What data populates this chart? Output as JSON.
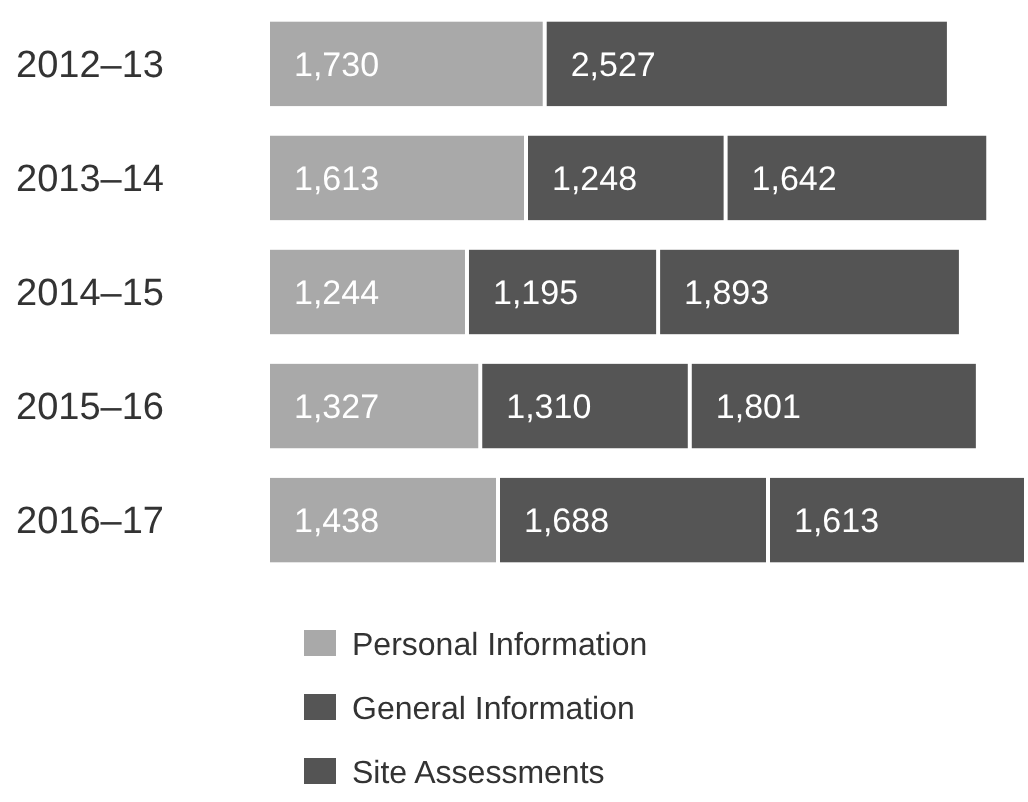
{
  "chart_data": {
    "type": "bar",
    "orientation": "horizontal",
    "stacked": true,
    "legend": "bottom",
    "categories": [
      "2012–13",
      "2013–14",
      "2014–15",
      "2015–16",
      "2016–17"
    ],
    "series": [
      {
        "name": "Personal Information",
        "color": "#a9a9a9",
        "values": [
          1730,
          1613,
          1244,
          1327,
          1438
        ],
        "value_labels": [
          "1,730",
          "1,613",
          "1,244",
          "1,327",
          "1,438"
        ]
      },
      {
        "name": "General Information",
        "color": "#555555",
        "values": [
          2527,
          1248,
          1195,
          1310,
          1688
        ],
        "value_labels": [
          "2,527",
          "1,248",
          "1,195",
          "1,310",
          "1,688"
        ]
      },
      {
        "name": "Site Assessments",
        "color": "#545454",
        "values": [
          null,
          1642,
          1893,
          1801,
          1613
        ],
        "value_labels": [
          null,
          "1,642",
          "1,893",
          "1,801",
          "1,613"
        ]
      }
    ]
  }
}
